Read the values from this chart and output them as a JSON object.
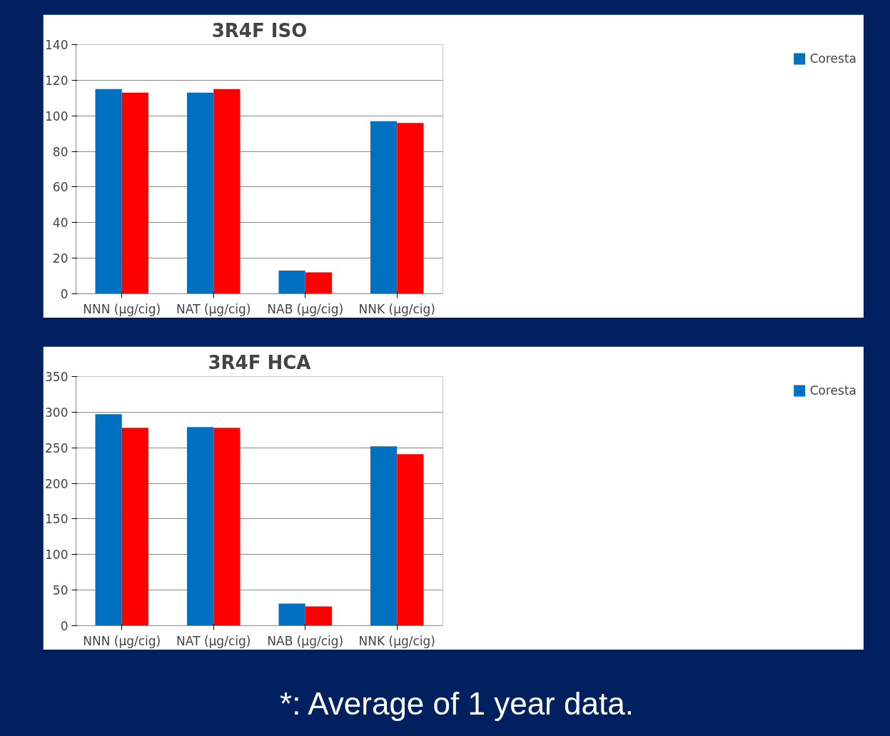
{
  "chart_data": [
    {
      "type": "bar",
      "title": "3R4F ISO",
      "categories": [
        "NNN (µg/cig)",
        "NAT (µg/cig)",
        "NAB (µg/cig)",
        "NNK (µg/cig)"
      ],
      "series": [
        {
          "name": "Coresta",
          "color": "#0070c0",
          "values": [
            115,
            113,
            13,
            97
          ]
        },
        {
          "color": "#ff0000",
          "values": [
            113,
            115,
            12,
            96
          ]
        }
      ],
      "ylim": [
        0,
        140
      ],
      "yticks": [
        0,
        20,
        40,
        60,
        80,
        100,
        120,
        140
      ],
      "grid": "y",
      "legend": "right"
    },
    {
      "type": "bar",
      "title": "3R4F HCA",
      "categories": [
        "NNN (µg/cig)",
        "NAT (µg/cig)",
        "NAB (µg/cig)",
        "NNK (µg/cig)"
      ],
      "series": [
        {
          "name": "Coresta",
          "color": "#0070c0",
          "values": [
            297,
            279,
            31,
            252
          ]
        },
        {
          "color": "#ff0000",
          "values": [
            278,
            278,
            27,
            241
          ]
        }
      ],
      "ylim": [
        0,
        350
      ],
      "yticks": [
        0,
        50,
        100,
        150,
        200,
        250,
        300,
        350
      ],
      "grid": "y",
      "legend": "right",
      "annotations": [
        "*: Average of 1 year data."
      ]
    }
  ]
}
